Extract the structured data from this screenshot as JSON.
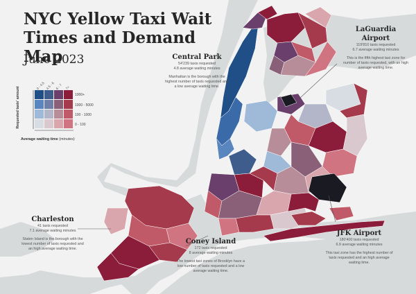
{
  "title": "NYC Yellow Taxi Wait Times and Demand Map",
  "subtitle": "June 2023",
  "legend": {
    "y_label": "Requested taxis' amount",
    "x_label_bold": "Average waiting time",
    "x_label_unit": "(minutes)",
    "row_labels": [
      "1000+",
      "1000 - 5000",
      "100 - 1000",
      "0 - 100"
    ],
    "col_labels": [
      "0 - 4.5",
      "4.5 - 6",
      "6 - 7",
      "7+"
    ],
    "colors": [
      [
        "#1f4f86",
        "#3f5d8c",
        "#6a3f6c",
        "#8c1d3a"
      ],
      [
        "#5a86bf",
        "#6f7fa8",
        "#8a6079",
        "#a53a4d"
      ],
      [
        "#9fb9d9",
        "#b3b6c8",
        "#b88d9a",
        "#c05a68"
      ],
      [
        "#d8dce3",
        "#d9c8cd",
        "#d9a6ad",
        "#cf7480"
      ]
    ]
  },
  "annotations": {
    "central_park": {
      "name": "Central Park",
      "line1": "54'239 taxis requested",
      "line2": "4.8 average waiting minutes",
      "note": "Manhattan is the borough with the highest number of taxis requested and a low average waiting time."
    },
    "laguardia": {
      "name": "LaGuardia Airport",
      "line1": "119'810 taxis requested",
      "line2": "6.7 average waiting minutes",
      "note": "This is the fifth highest taxi zone for number of taxis requested, with an high average waiting time."
    },
    "charleston": {
      "name": "Charleston",
      "line1": "41 taxis requested",
      "line2": "7.1 average waiting minutes",
      "note": "Staten Island is the borough with the lowest number of taxis requested and an high average waiting time."
    },
    "coney_island": {
      "name": "Coney Island",
      "line1": "172 taxis requested",
      "line2": "8 average waiting minutes",
      "note": "The lowest taxi zones of Brooklyn have a low number of taxis requested and a low average waiting time."
    },
    "jfk": {
      "name": "JFK Airport",
      "line1": "180'400 taxis requested",
      "line2": "6.9 average waiting minutes",
      "note": "This taxi zone has the highest number of taxis requested and an high average waiting time."
    }
  }
}
